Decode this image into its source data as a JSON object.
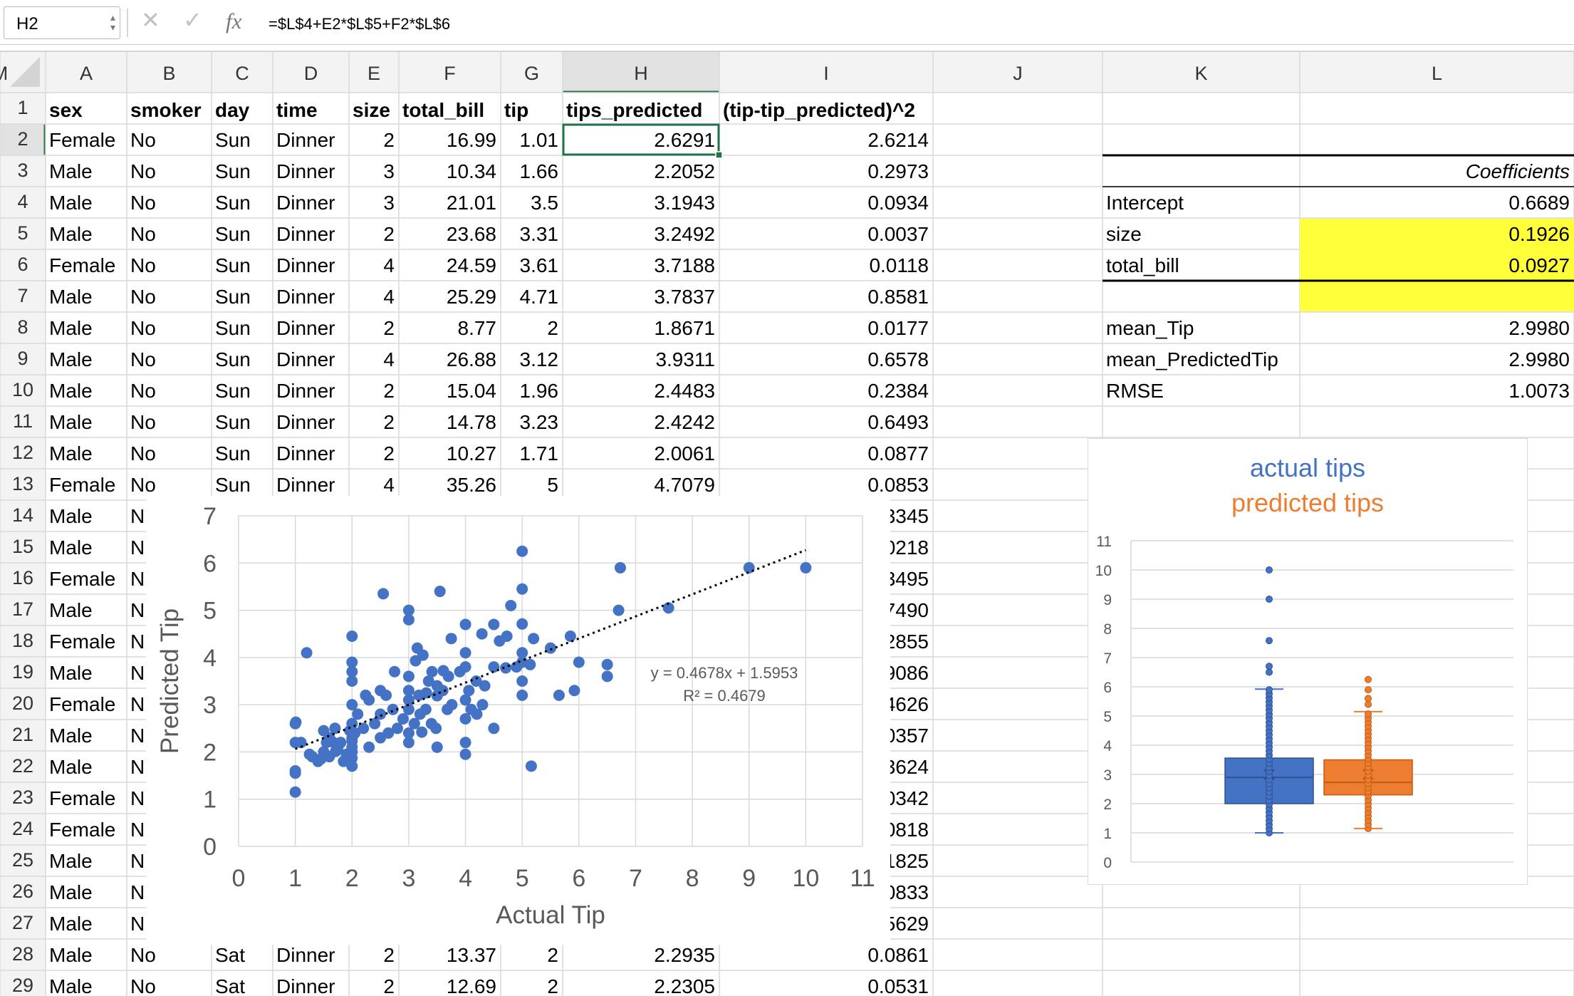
{
  "formula_bar": {
    "cell_ref": "H2",
    "formula": "=$L$4+E2*$L$5+F2*$L$6"
  },
  "columns": [
    "A",
    "B",
    "C",
    "D",
    "E",
    "F",
    "G",
    "H",
    "I",
    "J",
    "K",
    "L",
    "M"
  ],
  "headers": [
    "sex",
    "smoker",
    "day",
    "time",
    "size",
    "total_bill",
    "tip",
    "tips_predicted",
    "(tip-tip_predicted)^2"
  ],
  "rows": [
    [
      "Female",
      "No",
      "Sun",
      "Dinner",
      "2",
      "16.99",
      "1.01",
      "2.6291",
      "2.6214"
    ],
    [
      "Male",
      "No",
      "Sun",
      "Dinner",
      "3",
      "10.34",
      "1.66",
      "2.2052",
      "0.2973"
    ],
    [
      "Male",
      "No",
      "Sun",
      "Dinner",
      "3",
      "21.01",
      "3.5",
      "3.1943",
      "0.0934"
    ],
    [
      "Male",
      "No",
      "Sun",
      "Dinner",
      "2",
      "23.68",
      "3.31",
      "3.2492",
      "0.0037"
    ],
    [
      "Female",
      "No",
      "Sun",
      "Dinner",
      "4",
      "24.59",
      "3.61",
      "3.7188",
      "0.0118"
    ],
    [
      "Male",
      "No",
      "Sun",
      "Dinner",
      "4",
      "25.29",
      "4.71",
      "3.7837",
      "0.8581"
    ],
    [
      "Male",
      "No",
      "Sun",
      "Dinner",
      "2",
      "8.77",
      "2",
      "1.8671",
      "0.0177"
    ],
    [
      "Male",
      "No",
      "Sun",
      "Dinner",
      "4",
      "26.88",
      "3.12",
      "3.9311",
      "0.6578"
    ],
    [
      "Male",
      "No",
      "Sun",
      "Dinner",
      "2",
      "15.04",
      "1.96",
      "2.4483",
      "0.2384"
    ],
    [
      "Male",
      "No",
      "Sun",
      "Dinner",
      "2",
      "14.78",
      "3.23",
      "2.4242",
      "0.6493"
    ],
    [
      "Male",
      "No",
      "Sun",
      "Dinner",
      "2",
      "10.27",
      "1.71",
      "2.0061",
      "0.0877"
    ],
    [
      "Female",
      "No",
      "Sun",
      "Dinner",
      "4",
      "35.26",
      "5",
      "4.7079",
      "0.0853"
    ],
    [
      "Male",
      "N",
      "",
      "",
      "",
      "",
      "",
      "",
      "3345"
    ],
    [
      "Male",
      "N",
      "",
      "",
      "",
      "",
      "",
      "",
      "0218"
    ],
    [
      "Female",
      "N",
      "",
      "",
      "",
      "",
      "",
      "",
      "3495"
    ],
    [
      "Male",
      "N",
      "",
      "",
      "",
      "",
      "",
      "",
      "7490"
    ],
    [
      "Female",
      "N",
      "",
      "",
      "",
      "",
      "",
      "",
      "2855"
    ],
    [
      "Male",
      "N",
      "",
      "",
      "",
      "",
      "",
      "",
      "9086"
    ],
    [
      "Female",
      "N",
      "",
      "",
      "",
      "",
      "",
      "",
      "4626"
    ],
    [
      "Male",
      "N",
      "",
      "",
      "",
      "",
      "",
      "",
      "0357"
    ],
    [
      "Male",
      "N",
      "",
      "",
      "",
      "",
      "",
      "",
      "3624"
    ],
    [
      "Female",
      "N",
      "",
      "",
      "",
      "",
      "",
      "",
      "0342"
    ],
    [
      "Female",
      "N",
      "",
      "",
      "",
      "",
      "",
      "",
      "0818"
    ],
    [
      "Male",
      "N",
      "",
      "",
      "",
      "",
      "",
      "",
      "1825"
    ],
    [
      "Male",
      "N",
      "",
      "",
      "",
      "",
      "",
      "",
      "0833"
    ],
    [
      "Male",
      "N",
      "",
      "",
      "",
      "",
      "",
      "",
      "5629"
    ],
    [
      "Male",
      "No",
      "Sat",
      "Dinner",
      "2",
      "13.37",
      "2",
      "2.2935",
      "0.0861"
    ],
    [
      "Male",
      "No",
      "Sat",
      "Dinner",
      "2",
      "12.69",
      "2",
      "2.2305",
      "0.0531"
    ]
  ],
  "regression_table": {
    "header": "Coefficients",
    "rows": [
      {
        "label": "Intercept",
        "value": "0.6689"
      },
      {
        "label": "size",
        "value": "0.1926"
      },
      {
        "label": "total_bill",
        "value": "0.0927"
      }
    ]
  },
  "stats": [
    {
      "label": "mean_Tip",
      "value": "2.9980"
    },
    {
      "label": "mean_PredictedTip",
      "value": "2.9980"
    },
    {
      "label": "RMSE",
      "value": "1.0073"
    }
  ],
  "chart_data": [
    {
      "type": "scatter",
      "title": "",
      "xlabel": "Actual Tip",
      "ylabel": "Predicted Tip",
      "xlim": [
        0,
        11
      ],
      "ylim": [
        0,
        7
      ],
      "xticks": [
        0,
        1,
        2,
        3,
        4,
        5,
        6,
        7,
        8,
        9,
        10,
        11
      ],
      "yticks": [
        0,
        1,
        2,
        3,
        4,
        5,
        6,
        7
      ],
      "grid": true,
      "trendline": {
        "slope": 0.4678,
        "intercept": 1.5953,
        "x_range": [
          1,
          10
        ],
        "style": "dotted"
      },
      "annotations": [
        "y = 0.4678x + 1.5953",
        "R² = 0.4679"
      ],
      "point_color": "#4472c4",
      "points": [
        [
          1.0,
          1.15
        ],
        [
          1.0,
          1.55
        ],
        [
          1.0,
          1.6
        ],
        [
          1.0,
          2.6
        ],
        [
          1.0,
          2.2
        ],
        [
          1.01,
          2.63
        ],
        [
          1.1,
          2.2
        ],
        [
          1.2,
          4.1
        ],
        [
          1.25,
          1.95
        ],
        [
          1.3,
          1.9
        ],
        [
          1.4,
          1.8
        ],
        [
          1.45,
          1.85
        ],
        [
          1.5,
          2.0
        ],
        [
          1.5,
          2.45
        ],
        [
          1.55,
          2.2
        ],
        [
          1.6,
          1.9
        ],
        [
          1.6,
          2.3
        ],
        [
          1.66,
          2.21
        ],
        [
          1.7,
          2.5
        ],
        [
          1.71,
          2.01
        ],
        [
          1.75,
          2.1
        ],
        [
          1.8,
          2.2
        ],
        [
          1.85,
          1.8
        ],
        [
          1.9,
          1.95
        ],
        [
          1.96,
          2.45
        ],
        [
          2.0,
          1.87
        ],
        [
          2.0,
          2.29
        ],
        [
          2.0,
          2.23
        ],
        [
          2.0,
          2.1
        ],
        [
          2.0,
          2.6
        ],
        [
          2.0,
          3.0
        ],
        [
          2.0,
          3.5
        ],
        [
          2.0,
          3.7
        ],
        [
          2.0,
          3.9
        ],
        [
          2.0,
          4.45
        ],
        [
          2.0,
          2.0
        ],
        [
          2.0,
          1.7
        ],
        [
          2.05,
          2.4
        ],
        [
          2.1,
          2.8
        ],
        [
          2.2,
          2.5
        ],
        [
          2.24,
          3.2
        ],
        [
          2.3,
          2.1
        ],
        [
          2.3,
          3.1
        ],
        [
          2.4,
          2.6
        ],
        [
          2.5,
          2.8
        ],
        [
          2.5,
          3.3
        ],
        [
          2.5,
          2.3
        ],
        [
          2.55,
          5.35
        ],
        [
          2.6,
          3.2
        ],
        [
          2.64,
          2.4
        ],
        [
          2.72,
          2.9
        ],
        [
          2.75,
          3.7
        ],
        [
          2.8,
          2.5
        ],
        [
          2.9,
          2.7
        ],
        [
          3.0,
          2.9
        ],
        [
          3.0,
          3.6
        ],
        [
          3.0,
          4.8
        ],
        [
          3.0,
          5.0
        ],
        [
          3.0,
          2.4
        ],
        [
          3.0,
          2.2
        ],
        [
          3.0,
          3.1
        ],
        [
          3.0,
          3.3
        ],
        [
          3.1,
          2.6
        ],
        [
          3.12,
          3.93
        ],
        [
          3.15,
          4.2
        ],
        [
          3.18,
          3.2
        ],
        [
          3.2,
          2.8
        ],
        [
          3.23,
          2.42
        ],
        [
          3.25,
          4.05
        ],
        [
          3.3,
          2.9
        ],
        [
          3.31,
          3.25
        ],
        [
          3.35,
          3.5
        ],
        [
          3.4,
          2.6
        ],
        [
          3.41,
          3.7
        ],
        [
          3.48,
          2.5
        ],
        [
          3.5,
          3.19
        ],
        [
          3.5,
          3.4
        ],
        [
          3.5,
          2.1
        ],
        [
          3.55,
          5.4
        ],
        [
          3.6,
          3.3
        ],
        [
          3.61,
          3.72
        ],
        [
          3.68,
          2.9
        ],
        [
          3.7,
          3.6
        ],
        [
          3.75,
          4.4
        ],
        [
          3.76,
          3.0
        ],
        [
          3.9,
          3.7
        ],
        [
          4.0,
          2.7
        ],
        [
          4.0,
          3.1
        ],
        [
          4.0,
          3.8
        ],
        [
          4.0,
          4.1
        ],
        [
          4.0,
          4.7
        ],
        [
          4.0,
          2.2
        ],
        [
          4.0,
          1.95
        ],
        [
          4.06,
          3.3
        ],
        [
          4.1,
          2.9
        ],
        [
          4.19,
          3.5
        ],
        [
          4.2,
          2.8
        ],
        [
          4.29,
          4.5
        ],
        [
          4.3,
          3.0
        ],
        [
          4.34,
          3.4
        ],
        [
          4.5,
          2.5
        ],
        [
          4.5,
          3.8
        ],
        [
          4.5,
          4.7
        ],
        [
          4.6,
          4.35
        ],
        [
          4.71,
          3.78
        ],
        [
          4.73,
          4.45
        ],
        [
          4.8,
          5.1
        ],
        [
          4.9,
          3.8
        ],
        [
          5.0,
          4.71
        ],
        [
          5.0,
          5.45
        ],
        [
          5.0,
          3.5
        ],
        [
          5.0,
          3.2
        ],
        [
          5.0,
          4.1
        ],
        [
          5.0,
          3.9
        ],
        [
          5.0,
          6.25
        ],
        [
          5.14,
          3.85
        ],
        [
          5.16,
          1.7
        ],
        [
          5.2,
          4.4
        ],
        [
          5.5,
          4.2
        ],
        [
          5.65,
          3.2
        ],
        [
          5.85,
          4.45
        ],
        [
          5.92,
          3.3
        ],
        [
          6.0,
          3.9
        ],
        [
          6.5,
          3.85
        ],
        [
          6.5,
          3.6
        ],
        [
          6.7,
          5.0
        ],
        [
          6.73,
          5.9
        ],
        [
          7.58,
          5.05
        ],
        [
          9.0,
          5.9
        ],
        [
          10.0,
          5.9
        ]
      ]
    },
    {
      "type": "box",
      "title": "actual tips",
      "subtitle": "predicted tips",
      "ylim": [
        0,
        11
      ],
      "yticks": [
        0,
        1,
        2,
        3,
        4,
        5,
        6,
        7,
        8,
        9,
        10,
        11
      ],
      "grid": true,
      "series": [
        {
          "name": "actual tips",
          "color": "#4472c4",
          "q1": 2.0,
          "median": 2.9,
          "q3": 3.56,
          "mean": 3.0,
          "whisker_low": 1.0,
          "whisker_high": 5.92,
          "outliers": [
            6.5,
            6.7,
            7.58,
            9.0,
            10.0
          ]
        },
        {
          "name": "predicted tips",
          "color": "#ed7d31",
          "q1": 2.3,
          "median": 2.73,
          "q3": 3.5,
          "mean": 3.0,
          "whisker_low": 1.15,
          "whisker_high": 5.15,
          "outliers": [
            5.4,
            5.6,
            5.9,
            6.25
          ]
        }
      ]
    }
  ]
}
